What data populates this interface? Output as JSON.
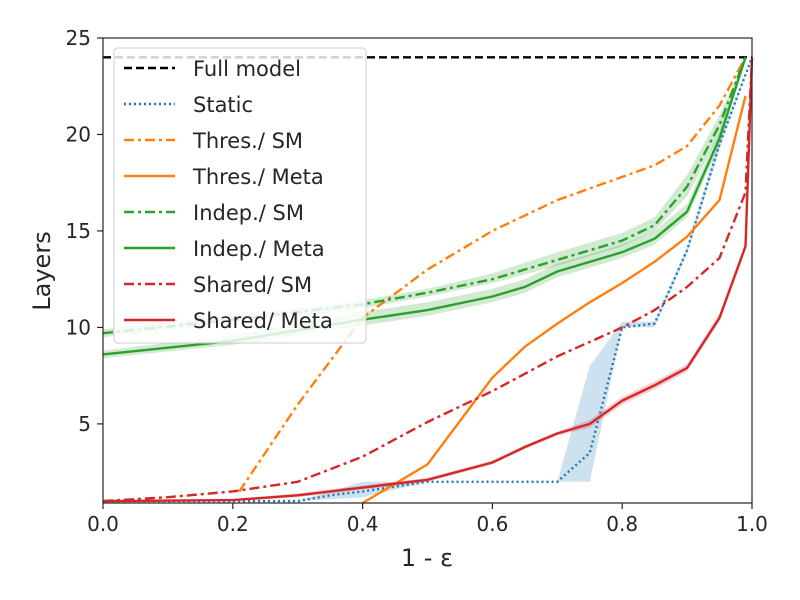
{
  "chart_data": {
    "type": "line",
    "xlabel": "1 - ε",
    "ylabel": "Layers",
    "xlim": [
      0.0,
      1.0
    ],
    "ylim": [
      0.9,
      25.0
    ],
    "x_ticks": [
      0.0,
      0.2,
      0.4,
      0.6,
      0.8,
      1.0
    ],
    "x_tick_labels": [
      "0.0",
      "0.2",
      "0.4",
      "0.6",
      "0.8",
      "1.0"
    ],
    "y_ticks": [
      5,
      10,
      15,
      20,
      25
    ],
    "y_tick_labels": [
      "5",
      "10",
      "15",
      "20",
      "25"
    ],
    "grid": false,
    "legend_position": "top-left",
    "colors": {
      "full": "#000000",
      "static": "#1f77b4",
      "thres": "#ff7f0e",
      "indep": "#2ca02c",
      "shared": "#d62728"
    },
    "series": [
      {
        "name": "Full model",
        "color": "#000000",
        "style": "dashed",
        "x": [
          0.0,
          1.0
        ],
        "y": [
          24,
          24
        ]
      },
      {
        "name": "Static",
        "color": "#1f77b4",
        "style": "dotted",
        "x": [
          0.0,
          0.3,
          0.35,
          0.4,
          0.5,
          0.6,
          0.7,
          0.75,
          0.8,
          0.85,
          0.9,
          0.95,
          1.0
        ],
        "y": [
          1.0,
          1.0,
          1.3,
          1.5,
          2.0,
          2.0,
          2.0,
          3.5,
          10.0,
          10.2,
          14.0,
          19.5,
          24.0
        ],
        "band_lower": [
          1.0,
          1.0,
          1.1,
          1.2,
          2.0,
          2.0,
          2.0,
          2.0,
          10.0,
          10.0,
          13.8,
          19.2,
          24.0
        ],
        "band_upper": [
          1.0,
          1.0,
          1.5,
          2.0,
          2.0,
          2.0,
          2.0,
          8.0,
          10.3,
          10.3,
          14.2,
          19.8,
          24.0
        ]
      },
      {
        "name": "Thres./ SM",
        "color": "#ff7f0e",
        "style": "dashdot",
        "x": [
          0.21,
          0.3,
          0.4,
          0.5,
          0.6,
          0.7,
          0.8,
          0.85,
          0.9,
          0.95,
          0.99
        ],
        "y": [
          1.5,
          6.0,
          10.5,
          13.0,
          15.0,
          16.6,
          17.8,
          18.4,
          19.4,
          21.5,
          24.0
        ]
      },
      {
        "name": "Thres./ Meta",
        "color": "#ff7f0e",
        "style": "solid",
        "x": [
          0.4,
          0.5,
          0.6,
          0.65,
          0.7,
          0.75,
          0.8,
          0.85,
          0.9,
          0.95,
          0.99
        ],
        "y": [
          0.9,
          2.9,
          7.4,
          9.0,
          10.2,
          11.3,
          12.3,
          13.4,
          14.7,
          16.6,
          22.0
        ]
      },
      {
        "name": "Indep./ SM",
        "color": "#2ca02c",
        "style": "dashdot",
        "x": [
          0.0,
          0.2,
          0.4,
          0.5,
          0.6,
          0.7,
          0.8,
          0.85,
          0.9,
          0.95,
          0.99
        ],
        "y": [
          9.7,
          10.4,
          11.2,
          11.8,
          12.5,
          13.5,
          14.5,
          15.3,
          17.3,
          20.5,
          24.0
        ]
      },
      {
        "name": "Indep./ Meta",
        "color": "#2ca02c",
        "style": "solid",
        "x": [
          0.0,
          0.2,
          0.4,
          0.5,
          0.6,
          0.65,
          0.7,
          0.8,
          0.85,
          0.9,
          0.95,
          0.99
        ],
        "y": [
          8.6,
          9.3,
          10.4,
          10.9,
          11.6,
          12.1,
          12.9,
          13.9,
          14.6,
          16.0,
          19.8,
          24.0
        ]
      },
      {
        "name": "Shared/ SM",
        "color": "#d62728",
        "style": "dashdot",
        "x": [
          0.0,
          0.1,
          0.2,
          0.3,
          0.4,
          0.5,
          0.6,
          0.7,
          0.8,
          0.85,
          0.9,
          0.95,
          0.99,
          1.0
        ],
        "y": [
          1.0,
          1.2,
          1.5,
          2.0,
          3.3,
          5.1,
          6.7,
          8.5,
          10.0,
          10.9,
          12.1,
          13.6,
          17.0,
          24.0
        ]
      },
      {
        "name": "Shared/ Meta",
        "color": "#d62728",
        "style": "solid",
        "x": [
          0.0,
          0.2,
          0.3,
          0.4,
          0.5,
          0.6,
          0.65,
          0.7,
          0.75,
          0.8,
          0.85,
          0.9,
          0.95,
          0.99,
          1.0
        ],
        "y": [
          1.0,
          1.05,
          1.3,
          1.7,
          2.1,
          3.0,
          3.8,
          4.5,
          5.0,
          6.2,
          7.0,
          7.9,
          10.5,
          14.2,
          24.0
        ]
      }
    ],
    "bands": [
      {
        "series": "Indep./ SM",
        "color": "#2ca02c",
        "x": [
          0.0,
          0.2,
          0.4,
          0.5,
          0.6,
          0.7,
          0.8,
          0.85,
          0.9,
          0.95,
          0.99
        ],
        "lower": [
          9.5,
          10.2,
          11.0,
          11.6,
          12.3,
          13.2,
          14.2,
          15.0,
          16.8,
          20.0,
          24.0
        ],
        "upper": [
          9.9,
          10.6,
          11.4,
          12.0,
          12.8,
          13.9,
          14.9,
          15.7,
          17.9,
          21.0,
          24.0
        ]
      },
      {
        "series": "Indep./ Meta",
        "color": "#2ca02c",
        "x": [
          0.0,
          0.2,
          0.4,
          0.5,
          0.6,
          0.65,
          0.7,
          0.8,
          0.85,
          0.9,
          0.95,
          0.99
        ],
        "lower": [
          8.4,
          9.1,
          10.1,
          10.6,
          11.3,
          11.8,
          12.6,
          13.6,
          14.3,
          15.7,
          19.4,
          24.0
        ],
        "upper": [
          8.8,
          9.6,
          10.8,
          11.3,
          12.0,
          12.5,
          13.3,
          14.3,
          15.0,
          16.4,
          20.2,
          24.0
        ]
      },
      {
        "series": "Static",
        "color": "#1f77b4",
        "x": [
          0.0,
          0.3,
          0.35,
          0.4,
          0.5,
          0.6,
          0.7,
          0.75,
          0.8,
          0.85,
          0.9,
          0.95,
          1.0
        ],
        "lower": [
          1.0,
          1.0,
          1.1,
          1.2,
          2.0,
          2.0,
          2.0,
          2.0,
          10.0,
          10.0,
          13.8,
          19.2,
          24.0
        ],
        "upper": [
          1.0,
          1.0,
          1.5,
          2.0,
          2.0,
          2.0,
          2.0,
          8.0,
          10.3,
          10.3,
          14.2,
          19.8,
          24.0
        ]
      },
      {
        "series": "Shared/ Meta",
        "color": "#d62728",
        "x": [
          0.0,
          0.2,
          0.3,
          0.4,
          0.5,
          0.6,
          0.65,
          0.7,
          0.75,
          0.8,
          0.85,
          0.9,
          0.95,
          0.99,
          1.0
        ],
        "lower": [
          1.0,
          1.0,
          1.2,
          1.6,
          2.0,
          2.9,
          3.7,
          4.4,
          4.8,
          6.0,
          6.8,
          7.7,
          10.3,
          14.0,
          24.0
        ],
        "upper": [
          1.0,
          1.1,
          1.4,
          1.8,
          2.2,
          3.1,
          3.9,
          4.6,
          5.2,
          6.4,
          7.2,
          8.1,
          10.7,
          14.4,
          24.0
        ]
      }
    ]
  }
}
